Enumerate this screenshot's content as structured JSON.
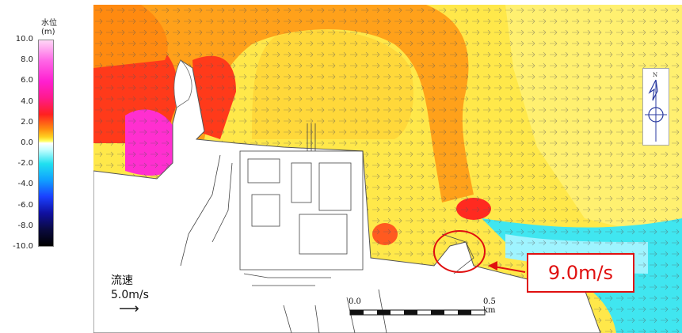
{
  "legend": {
    "title": "水位\n(m)",
    "ticks": [
      "10.0",
      "8.0",
      "6.0",
      "4.0",
      "2.0",
      "0.0",
      "-2.0",
      "-4.0",
      "-6.0",
      "-8.0",
      "-10.0"
    ]
  },
  "flow": {
    "label_line1": "流速",
    "label_line2": "5.0m/s",
    "arrow": "⟶"
  },
  "callout": {
    "text": "9.0m/s"
  },
  "scale": {
    "start": "0.0",
    "end": "0.5 km"
  },
  "compass": {
    "north": "N"
  },
  "colors": {
    "callout": "#e01010"
  }
}
